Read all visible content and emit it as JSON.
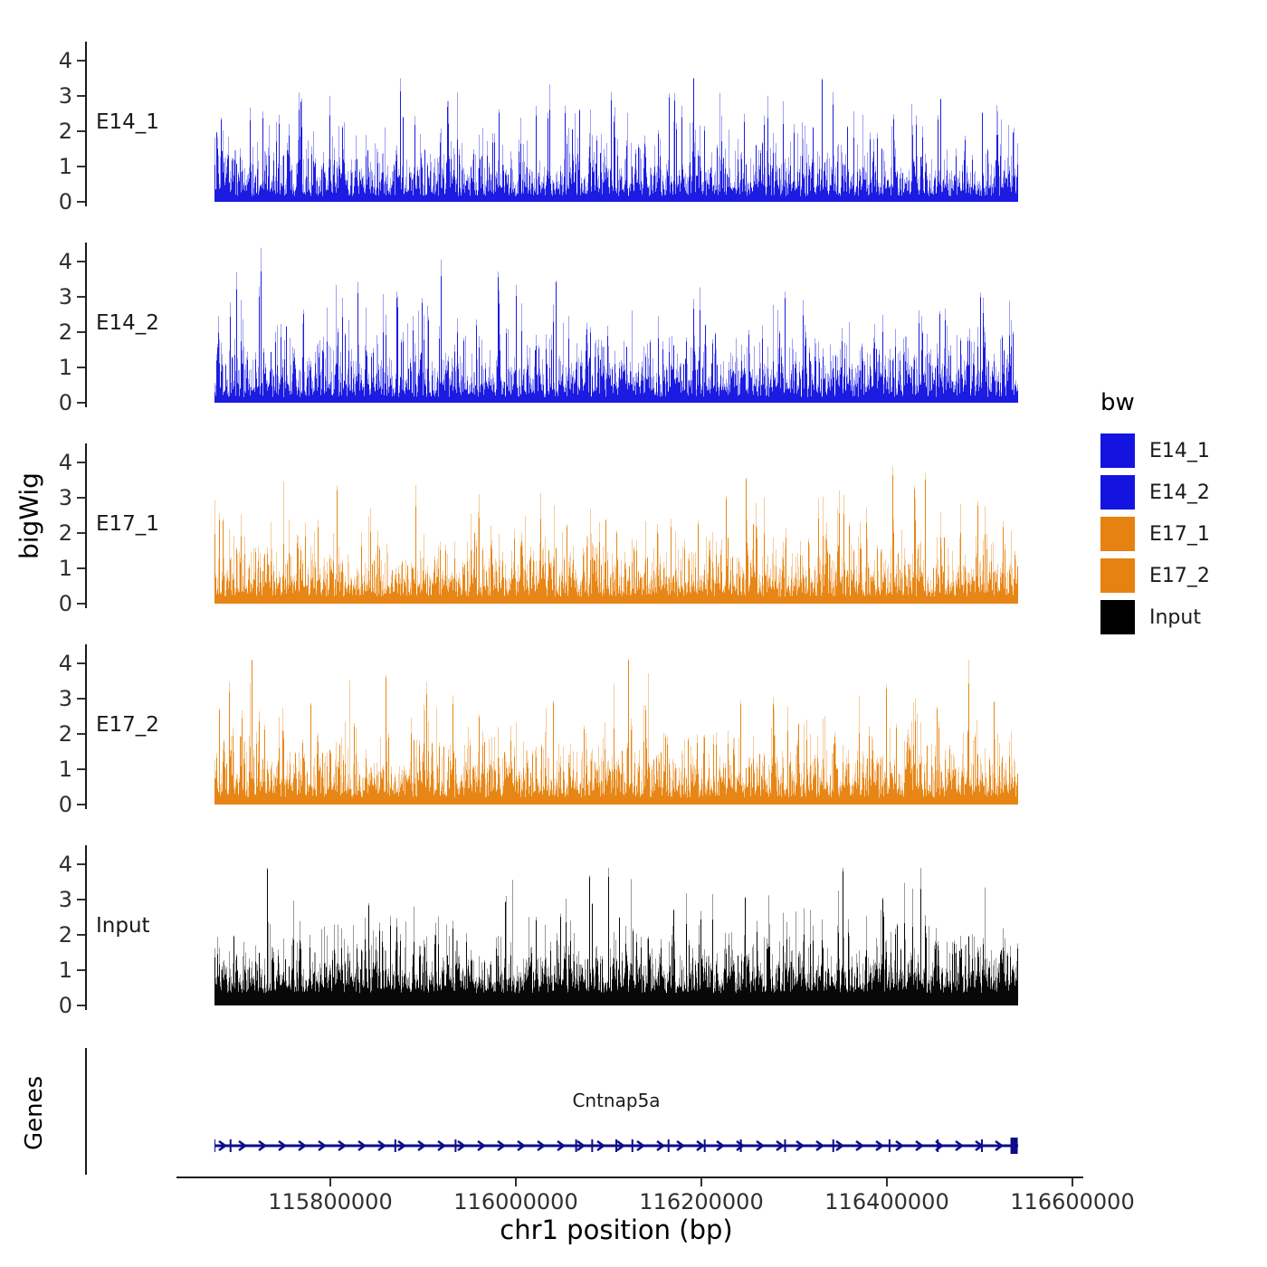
{
  "figure": {
    "y_axis_title": "bigWig",
    "x_axis_title": "chr1 position (bp)",
    "genes_panel_label": "Genes",
    "background": "#ffffff"
  },
  "chart_data": {
    "type": "area",
    "title": "",
    "ylabel": "bigWig",
    "xlabel": "chr1 position (bp)",
    "chromosome": "chr1",
    "x_range_bp": [
      115675000,
      116545000
    ],
    "x_ticks": [
      {
        "value": 115800000,
        "label": "115800000"
      },
      {
        "value": 116000000,
        "label": "116000000"
      },
      {
        "value": 116200000,
        "label": "116200000"
      },
      {
        "value": 116400000,
        "label": "116400000"
      },
      {
        "value": 116600000,
        "label": "116600000"
      }
    ],
    "y_ticks": [
      0,
      1,
      2,
      3,
      4
    ],
    "ylim": [
      0,
      4.6
    ],
    "tracks": [
      {
        "label": "E14_1",
        "color": "#1414E0",
        "seed": 1401,
        "base": 0.16,
        "mult": 0.5,
        "spike_prob": 0.012,
        "spike_add": 1.3,
        "max": 3.5
      },
      {
        "label": "E14_2",
        "color": "#1414E0",
        "seed": 1402,
        "base": 0.16,
        "mult": 0.54,
        "spike_prob": 0.013,
        "spike_add": 1.5,
        "max": 4.5
      },
      {
        "label": "E17_1",
        "color": "#E6820F",
        "seed": 1701,
        "base": 0.2,
        "mult": 0.5,
        "spike_prob": 0.012,
        "spike_add": 1.4,
        "max": 4.1
      },
      {
        "label": "E17_2",
        "color": "#E6820F",
        "seed": 1702,
        "base": 0.2,
        "mult": 0.5,
        "spike_prob": 0.012,
        "spike_add": 1.4,
        "max": 4.1
      },
      {
        "label": "Input",
        "color": "#000000",
        "seed": 9001,
        "base": 0.35,
        "mult": 0.5,
        "spike_prob": 0.008,
        "spike_add": 1.1,
        "max": 3.9
      }
    ],
    "gene": {
      "name": "Cntnap5a",
      "strand": "+",
      "color": "#0D0D8C",
      "exon_fracs": [
        0.0,
        0.02,
        0.225,
        0.3,
        0.45,
        0.47,
        0.5,
        0.52,
        0.565,
        0.61,
        0.655,
        0.71,
        0.77,
        0.84,
        0.9,
        0.955
      ],
      "end_exon_frac": 0.995
    },
    "legend": {
      "title": "bw",
      "entries": [
        {
          "label": "E14_1",
          "color": "#1414E0"
        },
        {
          "label": "E14_2",
          "color": "#1414E0"
        },
        {
          "label": "E17_1",
          "color": "#E6820F"
        },
        {
          "label": "E17_2",
          "color": "#E6820F"
        },
        {
          "label": "Input",
          "color": "#000000"
        }
      ]
    }
  }
}
